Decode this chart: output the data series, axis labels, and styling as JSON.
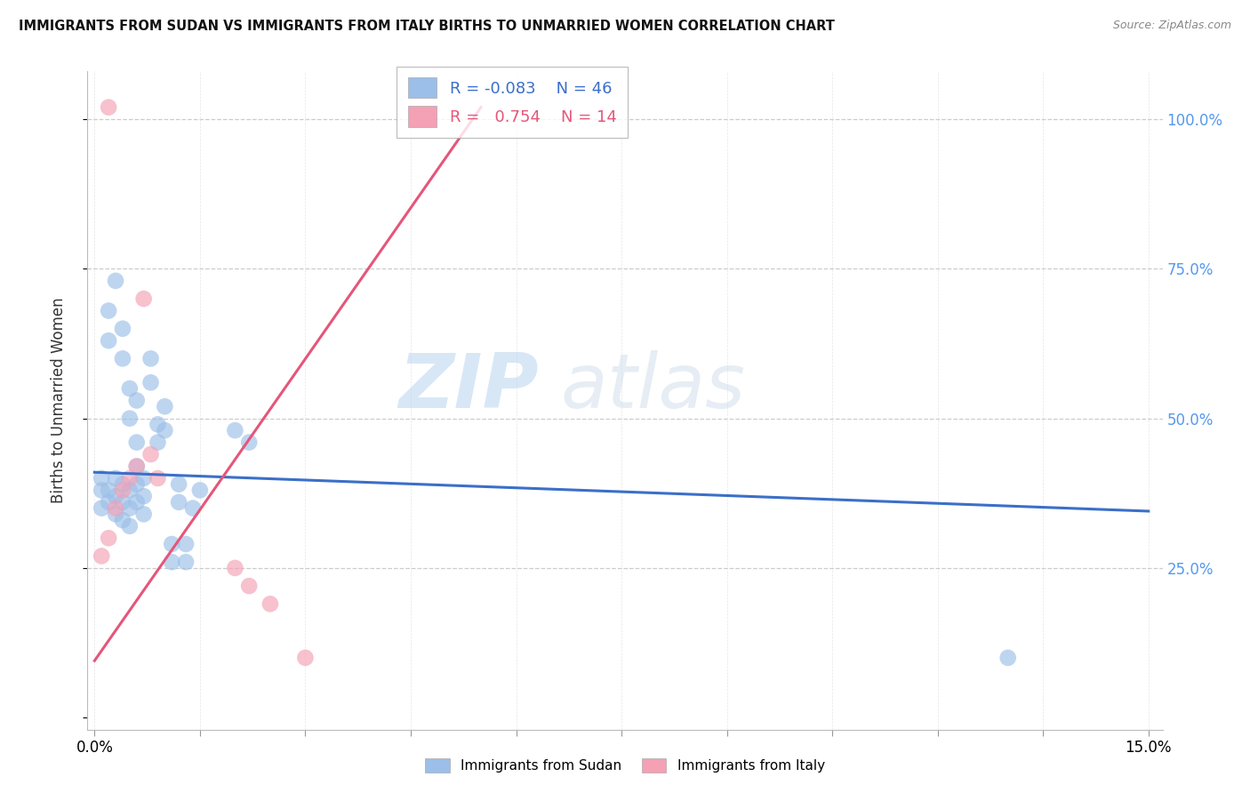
{
  "title": "IMMIGRANTS FROM SUDAN VS IMMIGRANTS FROM ITALY BIRTHS TO UNMARRIED WOMEN CORRELATION CHART",
  "source": "Source: ZipAtlas.com",
  "ylabel": "Births to Unmarried Women",
  "legend_sudan": "Immigrants from Sudan",
  "legend_italy": "Immigrants from Italy",
  "r_sudan": "-0.083",
  "n_sudan": "46",
  "r_italy": "0.754",
  "n_italy": "14",
  "sudan_color": "#9BBFE8",
  "italy_color": "#F4A0B5",
  "sudan_line_color": "#3B6FC9",
  "italy_line_color": "#E5567A",
  "watermark_zip": "ZIP",
  "watermark_atlas": "atlas",
  "sudan_x": [
    0.001,
    0.001,
    0.002,
    0.002,
    0.003,
    0.003,
    0.003,
    0.004,
    0.004,
    0.004,
    0.005,
    0.005,
    0.005,
    0.006,
    0.006,
    0.006,
    0.006,
    0.007,
    0.007,
    0.007,
    0.008,
    0.008,
    0.009,
    0.009,
    0.01,
    0.01,
    0.011,
    0.011,
    0.012,
    0.012,
    0.013,
    0.013,
    0.014,
    0.015,
    0.002,
    0.002,
    0.003,
    0.004,
    0.004,
    0.005,
    0.005,
    0.006,
    0.02,
    0.022,
    0.13,
    0.001
  ],
  "sudan_y": [
    0.38,
    0.4,
    0.36,
    0.38,
    0.34,
    0.37,
    0.4,
    0.33,
    0.36,
    0.39,
    0.32,
    0.35,
    0.38,
    0.36,
    0.39,
    0.42,
    0.46,
    0.34,
    0.37,
    0.4,
    0.56,
    0.6,
    0.46,
    0.49,
    0.48,
    0.52,
    0.26,
    0.29,
    0.36,
    0.39,
    0.26,
    0.29,
    0.35,
    0.38,
    0.63,
    0.68,
    0.73,
    0.6,
    0.65,
    0.55,
    0.5,
    0.53,
    0.48,
    0.46,
    0.1,
    0.35
  ],
  "italy_x": [
    0.001,
    0.002,
    0.003,
    0.004,
    0.005,
    0.006,
    0.007,
    0.008,
    0.009,
    0.02,
    0.022,
    0.025,
    0.03,
    0.002
  ],
  "italy_y": [
    0.27,
    0.3,
    0.35,
    0.38,
    0.4,
    0.42,
    0.7,
    0.44,
    0.4,
    0.25,
    0.22,
    0.19,
    0.1,
    1.02
  ],
  "xlim": [
    0.0,
    0.15
  ],
  "ylim": [
    0.0,
    1.05
  ],
  "sudan_line_x0": 0.0,
  "sudan_line_x1": 0.15,
  "sudan_line_y0": 0.41,
  "sudan_line_y1": 0.345,
  "italy_line_x0": 0.0,
  "italy_line_x1": 0.055,
  "italy_line_y0": 0.095,
  "italy_line_y1": 1.02,
  "background_color": "#FFFFFF",
  "grid_color": "#CCCCCC"
}
